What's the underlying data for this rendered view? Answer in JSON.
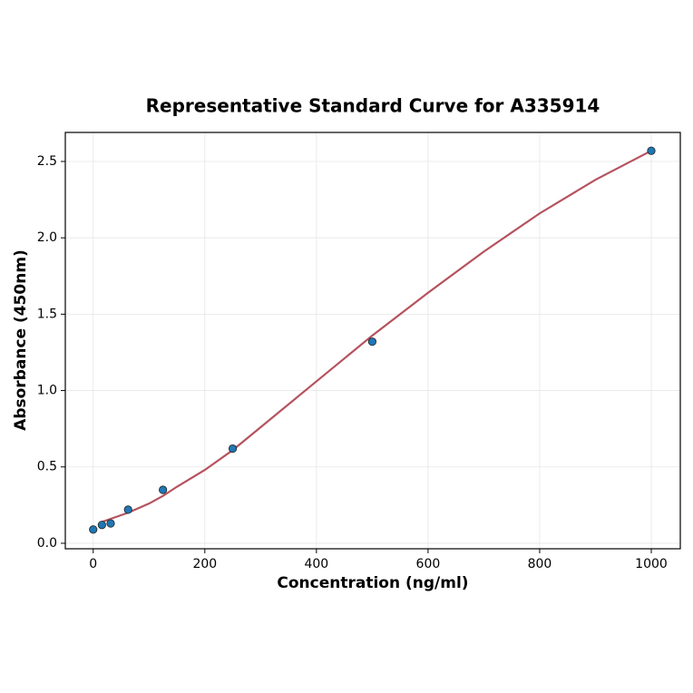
{
  "chart_data": {
    "type": "scatter",
    "title": "Representative Standard Curve for A335914",
    "x_label": "Concentration (ng/ml)",
    "y_label": "Absorbance (450nm)",
    "points": {
      "color": "#1f77b4",
      "x": [
        0,
        15.6,
        31.25,
        62.5,
        125,
        250,
        500,
        1000
      ],
      "y": [
        0.09,
        0.12,
        0.13,
        0.22,
        0.35,
        0.62,
        1.32,
        2.57
      ]
    },
    "curve": {
      "color": "#b5525e",
      "x": [
        15.6,
        62.5,
        100,
        125,
        150,
        200,
        250,
        300,
        400,
        500,
        600,
        700,
        800,
        900,
        1000
      ],
      "y": [
        0.14,
        0.2,
        0.26,
        0.31,
        0.37,
        0.48,
        0.61,
        0.76,
        1.06,
        1.36,
        1.64,
        1.91,
        2.16,
        2.38,
        2.57
      ]
    },
    "xlim": [
      -50,
      1052
    ],
    "ylim": [
      -0.036,
      2.69
    ],
    "xticks": [
      0,
      200,
      400,
      600,
      800,
      1000
    ],
    "yticks": [
      {
        "value": 0,
        "label": "0.0"
      },
      0.5,
      {
        "value": 1,
        "label": "1.0"
      },
      1.5,
      {
        "value": 2,
        "label": "2.0"
      },
      2.5
    ],
    "grid": true
  }
}
